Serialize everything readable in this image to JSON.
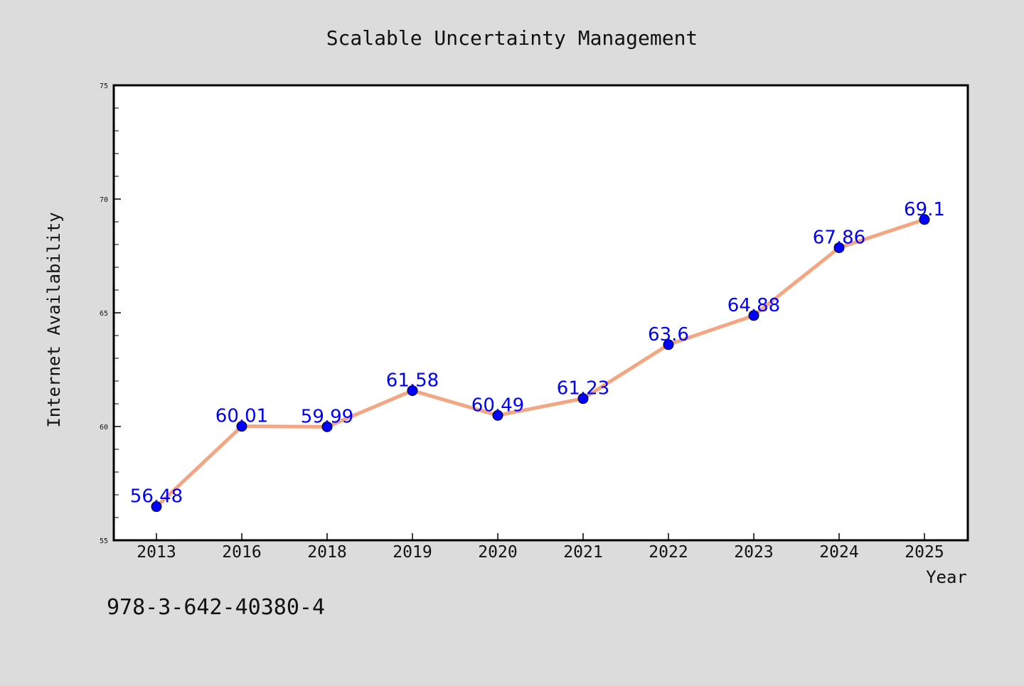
{
  "colors": {
    "background": "#dcdcdc",
    "plot_background": "#ffffff",
    "line": "#f4a582",
    "marker": "#0000ff",
    "labels": "#0000ff"
  },
  "footer": {
    "isbn": "978-3-642-40380-4"
  },
  "chart_data": {
    "type": "line",
    "title": "Scalable Uncertainty Management",
    "xlabel": "Year",
    "ylabel": "Internet Availability",
    "categories": [
      "2013",
      "2016",
      "2018",
      "2019",
      "2020",
      "2021",
      "2022",
      "2023",
      "2024",
      "2025"
    ],
    "values": [
      56.48,
      60.01,
      59.99,
      61.58,
      60.49,
      61.23,
      63.6,
      64.88,
      67.86,
      69.1
    ],
    "data_labels": [
      "56.48",
      "60.01",
      "59.99",
      "61.58",
      "60.49",
      "61.23",
      "63.6",
      "64.88",
      "67.86",
      "69.1"
    ],
    "ylim": [
      55,
      75
    ],
    "yticks": [
      55,
      60,
      65,
      70,
      75
    ],
    "grid": false,
    "legend": "none"
  }
}
